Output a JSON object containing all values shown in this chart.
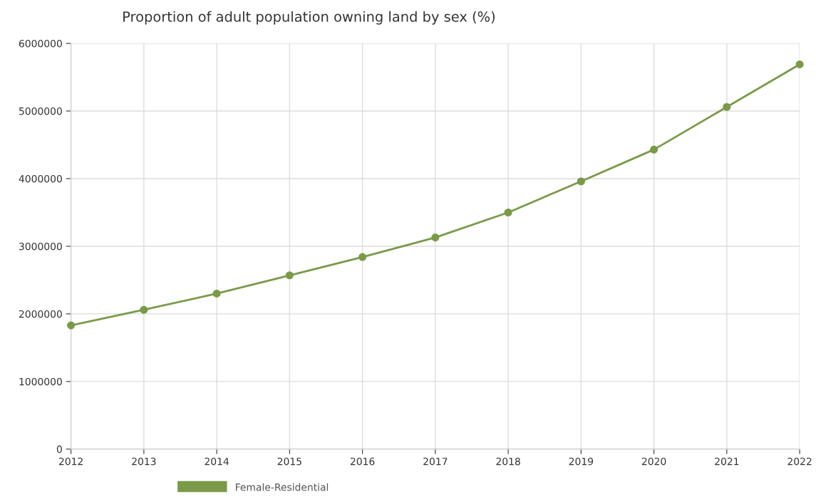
{
  "chart_data": {
    "type": "line",
    "title": "Proportion of adult population owning land by sex (%)",
    "categories": [
      "2012",
      "2013",
      "2014",
      "2015",
      "2016",
      "2017",
      "2018",
      "2019",
      "2020",
      "2021",
      "2022"
    ],
    "series": [
      {
        "name": "Female-Residential",
        "color": "#7a9a4a",
        "values": [
          1830000,
          2060000,
          2300000,
          2570000,
          2840000,
          3130000,
          3500000,
          3960000,
          4430000,
          5060000,
          5690000
        ]
      }
    ],
    "ylim": [
      0,
      6000000
    ],
    "yticks": [
      0,
      1000000,
      2000000,
      3000000,
      4000000,
      5000000,
      6000000
    ],
    "grid": true,
    "legend": "bottom",
    "marker": "circle",
    "line_style": "solid"
  }
}
